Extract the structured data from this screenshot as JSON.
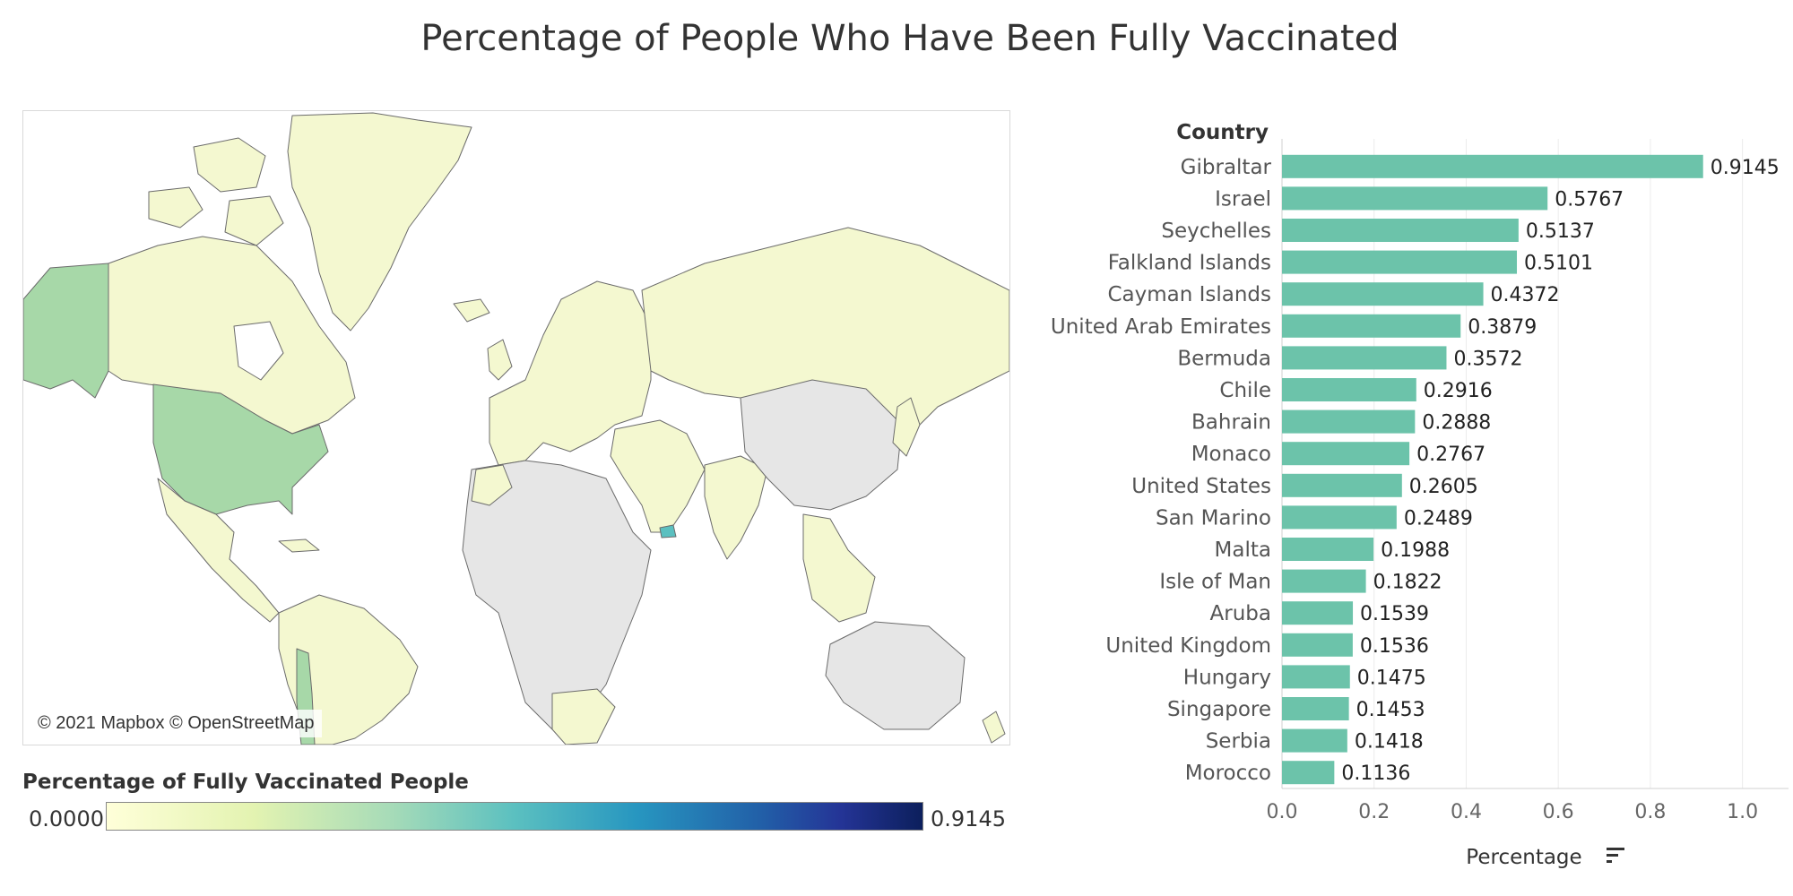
{
  "title": "Percentage of People Who Have Been Fully Vaccinated",
  "map": {
    "attribution": "© 2021 Mapbox © OpenStreetMap",
    "land_color_low": "#f4f8d0",
    "land_color_mid": "#a7d8a8",
    "no_data_color": "#e6e6e6",
    "border_color": "#6b6b6b"
  },
  "legend": {
    "title": "Percentage of Fully Vaccinated People",
    "min_label": "0.0000",
    "max_label": "0.9145",
    "palette": [
      "#ffffd9",
      "#a6dbb8",
      "#5bc0c0",
      "#2796c0",
      "#243496",
      "#0c1f5c"
    ]
  },
  "chart_data": {
    "type": "bar",
    "orientation": "horizontal",
    "ylabel": "Country",
    "xlabel": "Percentage",
    "categories": [
      "Gibraltar",
      "Israel",
      "Seychelles",
      "Falkland Islands",
      "Cayman Islands",
      "United Arab Emirates",
      "Bermuda",
      "Chile",
      "Bahrain",
      "Monaco",
      "United States",
      "San Marino",
      "Malta",
      "Isle of Man",
      "Aruba",
      "United Kingdom",
      "Hungary",
      "Singapore",
      "Serbia",
      "Morocco"
    ],
    "values": [
      0.9145,
      0.5767,
      0.5137,
      0.5101,
      0.4372,
      0.3879,
      0.3572,
      0.2916,
      0.2888,
      0.2767,
      0.2605,
      0.2489,
      0.1988,
      0.1822,
      0.1539,
      0.1536,
      0.1475,
      0.1453,
      0.1418,
      0.1136
    ],
    "value_labels": [
      "0.9145",
      "0.5767",
      "0.5137",
      "0.5101",
      "0.4372",
      "0.3879",
      "0.3572",
      "0.2916",
      "0.2888",
      "0.2767",
      "0.2605",
      "0.2489",
      "0.1988",
      "0.1822",
      "0.1539",
      "0.1536",
      "0.1475",
      "0.1453",
      "0.1418",
      "0.1136"
    ],
    "xticks": [
      "0.0",
      "0.2",
      "0.4",
      "0.6",
      "0.8",
      "1.0"
    ],
    "xlim": [
      0,
      1.1
    ],
    "bar_color": "#6cc3aa",
    "grid": true,
    "sort_icon": "sort-descending-icon"
  }
}
